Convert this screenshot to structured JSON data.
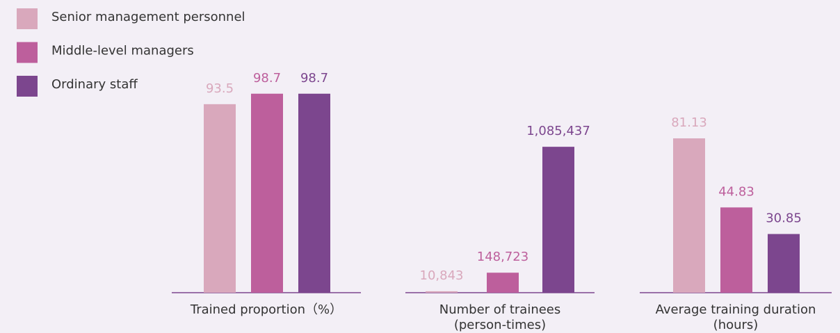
{
  "legend": [
    {
      "name": "Senior management personnel",
      "color": "#d9a8bc"
    },
    {
      "name": "Middle-level managers",
      "color": "#bd5f9c"
    },
    {
      "name": "Ordinary staff",
      "color": "#7c468e"
    }
  ],
  "chart_data": [
    {
      "type": "bar",
      "title": [
        "Trained proportion（%）"
      ],
      "values": [
        93.5,
        98.7,
        98.7
      ],
      "ylim": [
        0,
        100
      ]
    },
    {
      "type": "bar",
      "title": [
        "Number of trainees",
        "(person-times)"
      ],
      "values": [
        10843,
        148723,
        1085437
      ],
      "value_labels": [
        "10,843",
        "148,723",
        "1,085,437"
      ],
      "ylim": [
        0,
        1500000
      ]
    },
    {
      "type": "bar",
      "title": [
        "Average training duration",
        "(hours)"
      ],
      "values": [
        81.13,
        44.83,
        30.85
      ],
      "ylim": [
        0,
        106
      ]
    }
  ]
}
